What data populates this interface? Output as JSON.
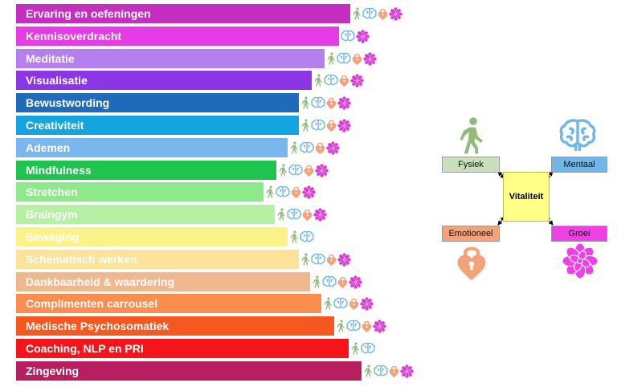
{
  "colors": {
    "physical": "#8fbc7a",
    "mental": "#6fb7ea",
    "emotional": "#f4a27a",
    "growth": "#d63ad4"
  },
  "items": [
    {
      "label": "Ervaring en oefeningen",
      "color": "#c42fc0",
      "icons": [
        "walking-person-icon",
        "brain-icon",
        "heart-lock-icon",
        "lotus-icon"
      ]
    },
    {
      "label": "Kennisoverdracht",
      "color": "#e53de6",
      "icons": [
        "brain-icon",
        "lotus-icon"
      ]
    },
    {
      "label": "Meditatie",
      "color": "#b57fef",
      "icons": [
        "walking-person-icon",
        "brain-icon",
        "heart-lock-icon",
        "lotus-icon"
      ]
    },
    {
      "label": "Visualisatie",
      "color": "#8c35e6",
      "icons": [
        "walking-person-icon",
        "brain-icon",
        "heart-lock-icon",
        "lotus-icon"
      ]
    },
    {
      "label": "Bewustwording",
      "color": "#1f6bb9",
      "icons": [
        "walking-person-icon",
        "brain-icon",
        "heart-lock-icon",
        "lotus-icon"
      ]
    },
    {
      "label": "Creativiteit",
      "color": "#14a5e0",
      "icons": [
        "walking-person-icon",
        "brain-icon",
        "heart-lock-icon",
        "lotus-icon"
      ]
    },
    {
      "label": "Ademen",
      "color": "#7ab7ef",
      "icons": [
        "walking-person-icon",
        "brain-icon",
        "heart-lock-icon",
        "lotus-icon"
      ]
    },
    {
      "label": "Mindfulness",
      "color": "#1fc44f",
      "icons": [
        "walking-person-icon",
        "brain-icon",
        "heart-lock-icon",
        "lotus-icon"
      ]
    },
    {
      "label": "Stretchen",
      "color": "#8fe88b",
      "icons": [
        "walking-person-icon",
        "brain-icon",
        "heart-lock-icon",
        "lotus-icon"
      ]
    },
    {
      "label": "Braingym",
      "color": "#b5f0a5",
      "icons": [
        "walking-person-icon",
        "brain-icon",
        "heart-lock-icon",
        "lotus-icon"
      ]
    },
    {
      "label": "Beweging",
      "color": "#fbf38a",
      "icons": [
        "walking-person-icon",
        "brain-icon"
      ]
    },
    {
      "label": "Schematisch werken",
      "color": "#fde29a",
      "icons": [
        "walking-person-icon",
        "brain-icon",
        "heart-lock-icon",
        "lotus-icon"
      ]
    },
    {
      "label": "Dankbaarheid & waardering",
      "color": "#efb88f",
      "icons": [
        "walking-person-icon",
        "brain-icon",
        "heart-lock-icon",
        "lotus-icon"
      ]
    },
    {
      "label": "Complimenten carrousel",
      "color": "#fb8e4f",
      "icons": [
        "walking-person-icon",
        "brain-icon",
        "heart-lock-icon",
        "lotus-icon"
      ]
    },
    {
      "label": "Medische Psychosomatiek",
      "color": "#f7581f",
      "icons": [
        "walking-person-icon",
        "brain-icon",
        "heart-lock-icon",
        "lotus-icon"
      ]
    },
    {
      "label": "Coaching, NLP en PRI",
      "color": "#f5141a",
      "icons": [
        "walking-person-icon",
        "brain-icon"
      ]
    },
    {
      "label": "Zingeving",
      "color": "#b81f5e",
      "icons": [
        "walking-person-icon",
        "brain-icon",
        "heart-lock-icon",
        "lotus-icon"
      ]
    }
  ],
  "legend": {
    "center": "Vitaliteit",
    "fysiek": "Fysiek",
    "mentaal": "Mentaal",
    "emotioneel": "Emotioneel",
    "groei": "Groei",
    "fysiek_color": "#c8e0bc",
    "mentaal_color": "#6fb7ea",
    "emotioneel_color": "#f4a27a",
    "groei_color": "#ef3fe6"
  }
}
